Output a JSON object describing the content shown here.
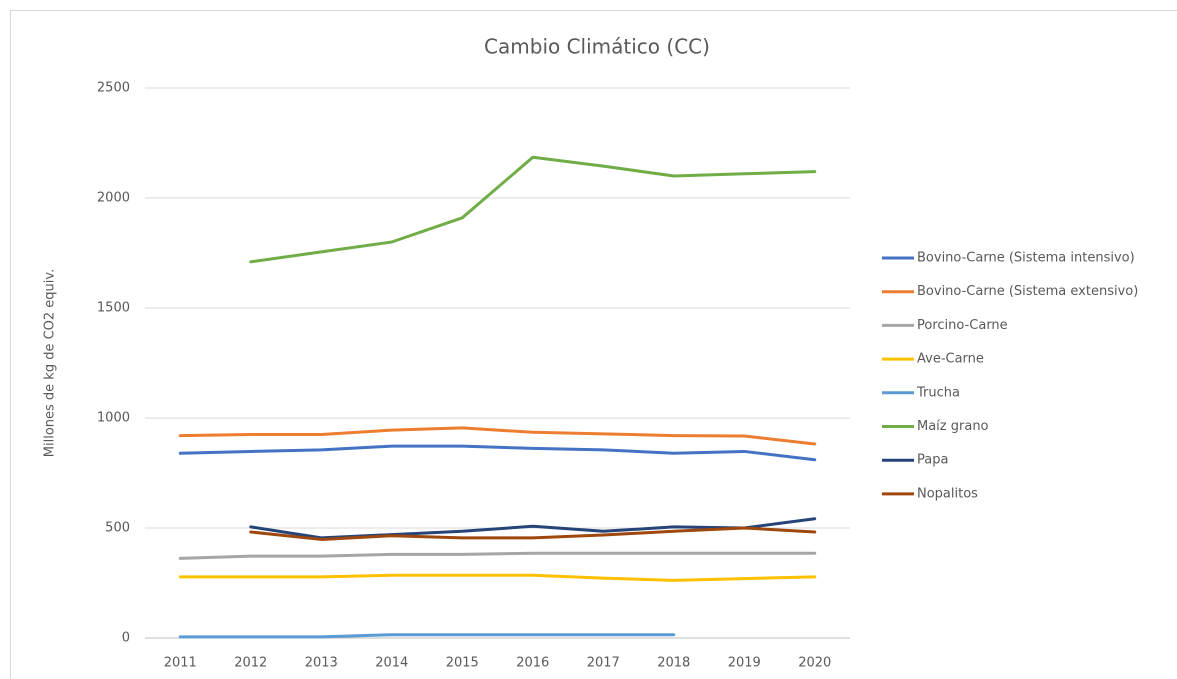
{
  "chart_data": {
    "type": "line",
    "title": "Cambio Climático (CC)",
    "y_label": "Millones de kg de CO2 equiv.",
    "categories": [
      "2011",
      "2012",
      "2013",
      "2014",
      "2015",
      "2016",
      "2017",
      "2018",
      "2019",
      "2020"
    ],
    "ylim": [
      0,
      2500
    ],
    "yticks": [
      0,
      500,
      1000,
      1500,
      2000,
      2500
    ],
    "grid": true,
    "legend": "right",
    "series": [
      {
        "name": "Bovino-Carne (Sistema intensivo)",
        "color": "#4472c4",
        "values": [
          840,
          848,
          855,
          872,
          872,
          862,
          855,
          840,
          848,
          810
        ]
      },
      {
        "name": "Bovino-Carne (Sistema extensivo)",
        "color": "#ed7d31",
        "values": [
          920,
          925,
          925,
          945,
          955,
          935,
          928,
          920,
          918,
          882
        ]
      },
      {
        "name": "Porcino-Carne",
        "color": "#a5a5a5",
        "values": [
          362,
          372,
          372,
          380,
          380,
          385,
          385,
          385,
          385,
          385
        ]
      },
      {
        "name": "Ave-Carne",
        "color": "#ffc000",
        "values": [
          278,
          278,
          278,
          285,
          285,
          285,
          272,
          262,
          270,
          278
        ]
      },
      {
        "name": "Trucha",
        "color": "#5b9bd5",
        "values": [
          5,
          5,
          5,
          15,
          15,
          15,
          15,
          15,
          null,
          null
        ]
      },
      {
        "name": "Maíz grano",
        "color": "#70ad47",
        "values": [
          null,
          1710,
          1755,
          1800,
          1910,
          2185,
          2145,
          2100,
          2110,
          2120
        ]
      },
      {
        "name": "Papa",
        "color": "#264478",
        "values": [
          null,
          505,
          455,
          470,
          485,
          508,
          485,
          505,
          500,
          542
        ]
      },
      {
        "name": "Nopalitos",
        "color": "#9e480e",
        "values": [
          null,
          482,
          448,
          465,
          455,
          455,
          468,
          485,
          500,
          482
        ]
      }
    ]
  }
}
